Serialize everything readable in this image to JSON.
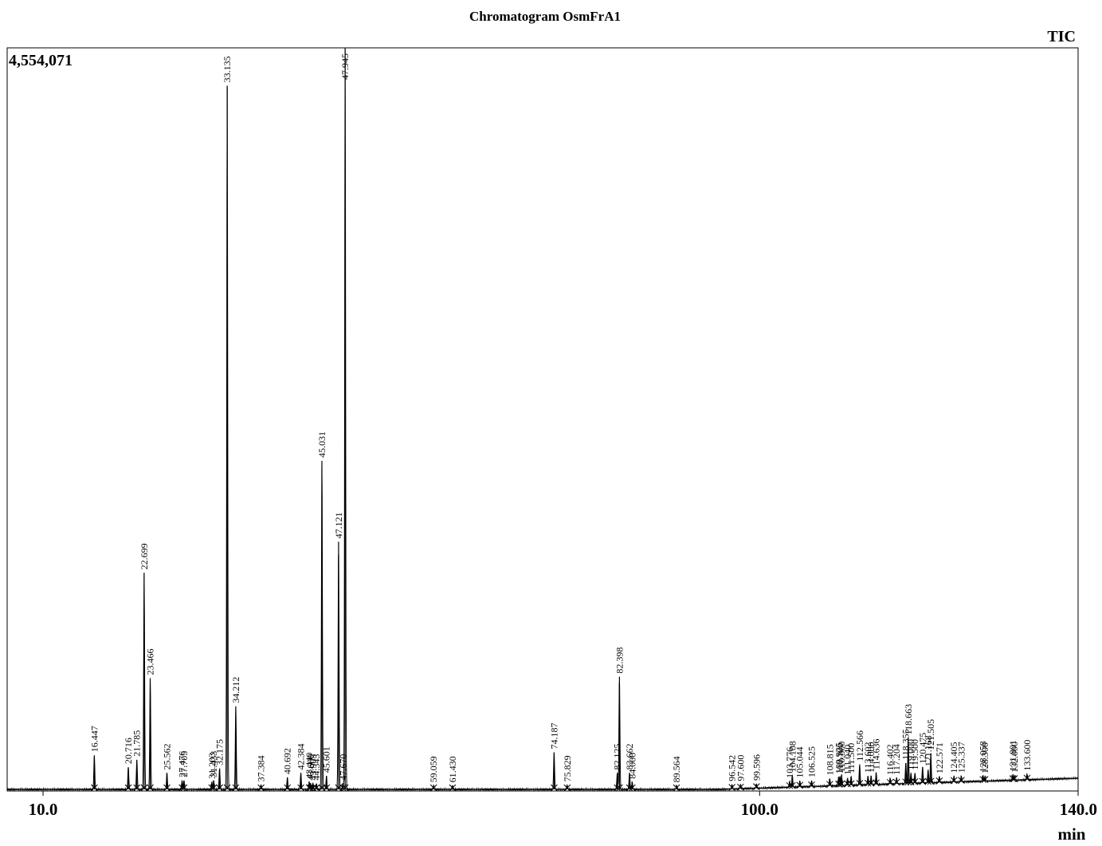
{
  "chart_data": {
    "type": "line",
    "title": "Chromatogram  OsmFrA1",
    "signal_label": "TIC",
    "max_intensity_label": "4,554,071",
    "xlabel": "min",
    "xlim": [
      5.5,
      140.0
    ],
    "ylim": [
      0,
      4554071
    ],
    "x_ticks": [
      {
        "value": 10.0,
        "label": "10.0"
      },
      {
        "value": 100.0,
        "label": "100.0"
      },
      {
        "value": 140.0,
        "label": "140.0"
      }
    ],
    "peaks": [
      {
        "rt": 16.447,
        "label": "16.447",
        "h": 0.046
      },
      {
        "rt": 20.716,
        "label": "20.716",
        "h": 0.03
      },
      {
        "rt": 21.785,
        "label": "21.785",
        "h": 0.04
      },
      {
        "rt": 22.699,
        "label": "22.699",
        "h": 0.292
      },
      {
        "rt": 23.466,
        "label": "23.466",
        "h": 0.15
      },
      {
        "rt": 25.562,
        "label": "25.562",
        "h": 0.022
      },
      {
        "rt": 27.476,
        "label": "27.476",
        "h": 0.012
      },
      {
        "rt": 27.705,
        "label": "27.705",
        "h": 0.012
      },
      {
        "rt": 31.203,
        "label": "31.203",
        "h": 0.01
      },
      {
        "rt": 31.433,
        "label": "31.433",
        "h": 0.012
      },
      {
        "rt": 32.175,
        "label": "32.175",
        "h": 0.028
      },
      {
        "rt": 33.135,
        "label": "33.135",
        "h": 0.949
      },
      {
        "rt": 34.212,
        "label": "34.212",
        "h": 0.112
      },
      {
        "rt": 37.384,
        "label": "37.384",
        "h": 0.006
      },
      {
        "rt": 40.692,
        "label": "40.692",
        "h": 0.016
      },
      {
        "rt": 42.384,
        "label": "42.384",
        "h": 0.022
      },
      {
        "rt": 43.44,
        "label": "43.440",
        "h": 0.01
      },
      {
        "rt": 43.6,
        "label": "43.600",
        "h": 0.008
      },
      {
        "rt": 43.905,
        "label": "43.905",
        "h": 0.008
      },
      {
        "rt": 44.343,
        "label": "44.343",
        "h": 0.008
      },
      {
        "rt": 45.031,
        "label": "45.031",
        "h": 0.443
      },
      {
        "rt": 45.601,
        "label": "45.601",
        "h": 0.018
      },
      {
        "rt": 47.121,
        "label": "47.121",
        "h": 0.334
      },
      {
        "rt": 47.67,
        "label": "47.670",
        "h": 0.008
      },
      {
        "rt": 47.945,
        "label": "47.945",
        "h": 1.0
      },
      {
        "rt": 59.059,
        "label": "59.059",
        "h": 0.005
      },
      {
        "rt": 61.43,
        "label": "61.430",
        "h": 0.005
      },
      {
        "rt": 74.187,
        "label": "74.187",
        "h": 0.05
      },
      {
        "rt": 75.829,
        "label": "75.829",
        "h": 0.006
      },
      {
        "rt": 82.125,
        "label": "82.125",
        "h": 0.022
      },
      {
        "rt": 82.398,
        "label": "82.398",
        "h": 0.152
      },
      {
        "rt": 83.662,
        "label": "83.662",
        "h": 0.022
      },
      {
        "rt": 84.0,
        "label": "84.000",
        "h": 0.01
      },
      {
        "rt": 89.564,
        "label": "89.564",
        "h": 0.005
      },
      {
        "rt": 96.542,
        "label": "96.542",
        "h": 0.006
      },
      {
        "rt": 97.6,
        "label": "97.600",
        "h": 0.006
      },
      {
        "rt": 99.596,
        "label": "99.596",
        "h": 0.006
      },
      {
        "rt": 103.776,
        "label": "103.776",
        "h": 0.008
      },
      {
        "rt": 104.108,
        "label": "104.108",
        "h": 0.016
      },
      {
        "rt": 105.044,
        "label": "105.044",
        "h": 0.008
      },
      {
        "rt": 106.525,
        "label": "106.525",
        "h": 0.008
      },
      {
        "rt": 108.815,
        "label": "108.815",
        "h": 0.01
      },
      {
        "rt": 109.925,
        "label": "109.925",
        "h": 0.012
      },
      {
        "rt": 110.1,
        "label": "110.100",
        "h": 0.012
      },
      {
        "rt": 110.3,
        "label": "110.300",
        "h": 0.014
      },
      {
        "rt": 111.04,
        "label": "111.040",
        "h": 0.01
      },
      {
        "rt": 111.5,
        "label": "111.500",
        "h": 0.012
      },
      {
        "rt": 112.566,
        "label": "112.566",
        "h": 0.028
      },
      {
        "rt": 113.602,
        "label": "113.602",
        "h": 0.012
      },
      {
        "rt": 114.0,
        "label": "114.000",
        "h": 0.012
      },
      {
        "rt": 114.636,
        "label": "114.636",
        "h": 0.016
      },
      {
        "rt": 116.402,
        "label": "116.402",
        "h": 0.008
      },
      {
        "rt": 117.204,
        "label": "117.204",
        "h": 0.008
      },
      {
        "rt": 118.355,
        "label": "118.355",
        "h": 0.028
      },
      {
        "rt": 118.663,
        "label": "118.663",
        "h": 0.062
      },
      {
        "rt": 119.0,
        "label": "119.000",
        "h": 0.014
      },
      {
        "rt": 119.5,
        "label": "119.500",
        "h": 0.014
      },
      {
        "rt": 120.475,
        "label": "120.475",
        "h": 0.022
      },
      {
        "rt": 121.168,
        "label": "121.168",
        "h": 0.018
      },
      {
        "rt": 121.505,
        "label": "121.505",
        "h": 0.04
      },
      {
        "rt": 122.571,
        "label": "122.571",
        "h": 0.008
      },
      {
        "rt": 124.405,
        "label": "124.405",
        "h": 0.008
      },
      {
        "rt": 125.337,
        "label": "125.337",
        "h": 0.008
      },
      {
        "rt": 128.058,
        "label": "128.058",
        "h": 0.008
      },
      {
        "rt": 128.3,
        "label": "128.300",
        "h": 0.006
      },
      {
        "rt": 131.801,
        "label": "131.801",
        "h": 0.008
      },
      {
        "rt": 132.0,
        "label": "132.000",
        "h": 0.006
      },
      {
        "rt": 133.6,
        "label": "133.600",
        "h": 0.008
      }
    ]
  }
}
